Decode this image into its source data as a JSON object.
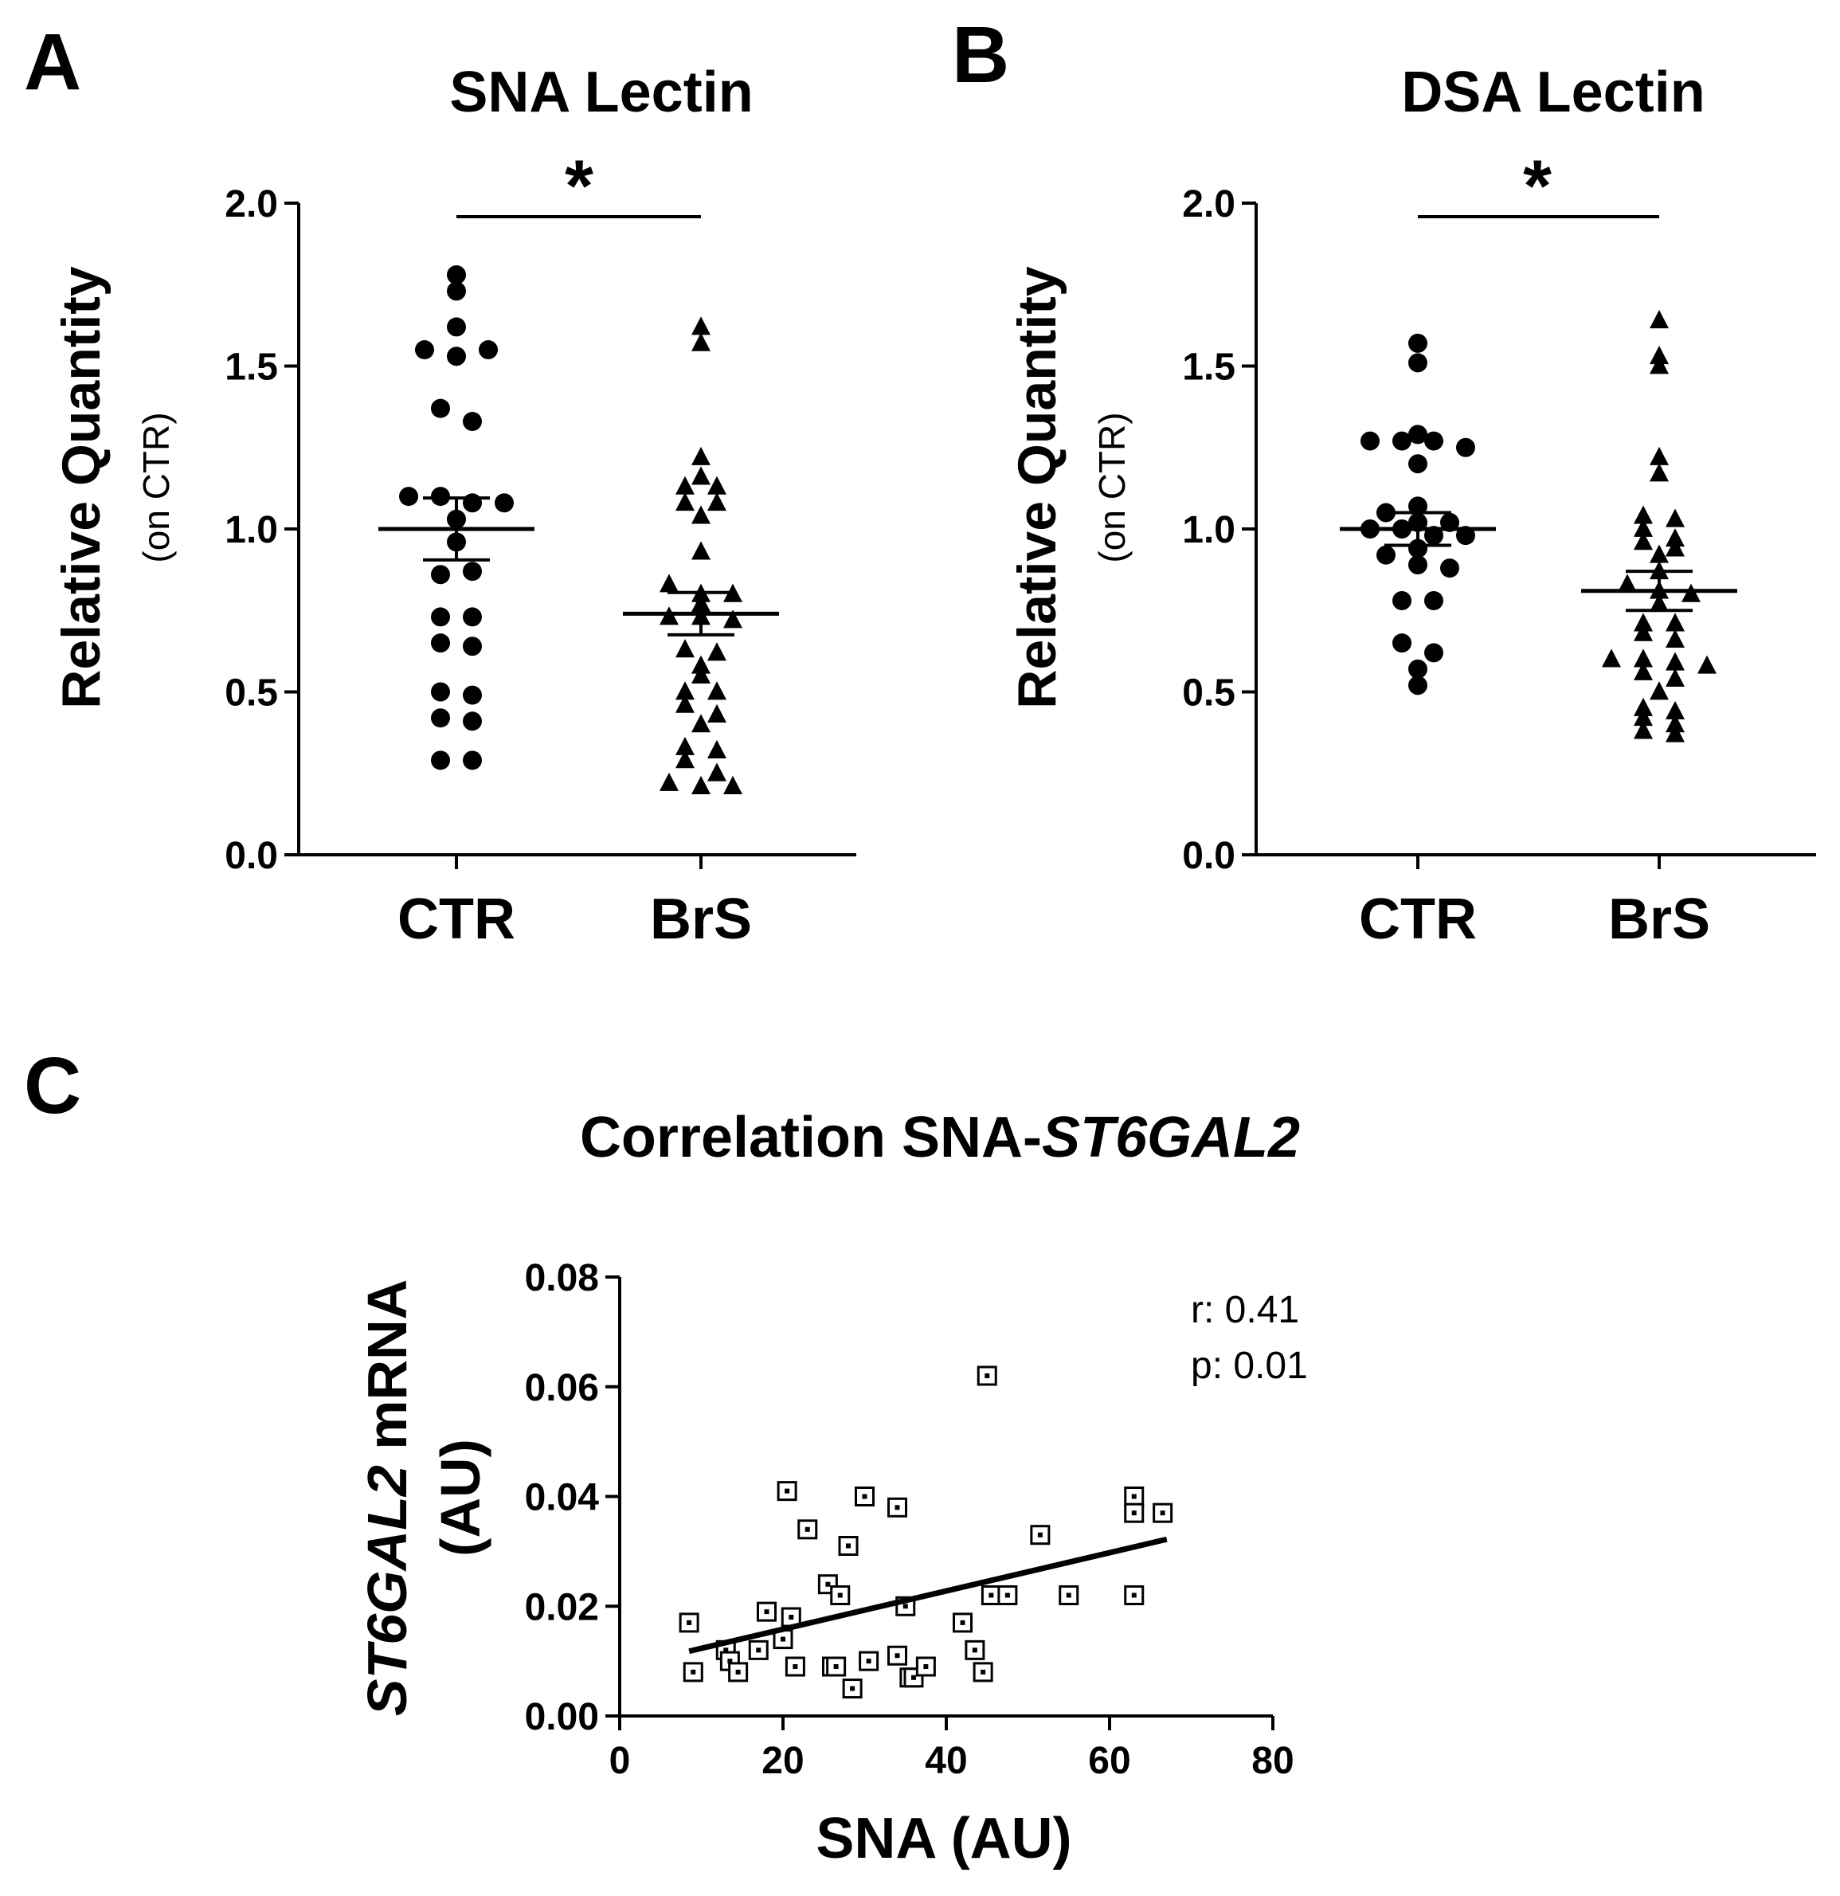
{
  "chart_data": [
    {
      "panel": "A",
      "type": "scatter",
      "title": "SNA Lectin",
      "ylabel": "Relative Quantity",
      "ylabel_sub": "(on CTR)",
      "ylim": [
        0,
        2.0
      ],
      "yticks": [
        "0.0",
        "0.5",
        "1.0",
        "1.5",
        "2.0"
      ],
      "categories": [
        "CTR",
        "BrS"
      ],
      "significance": "*",
      "series": [
        {
          "name": "CTR",
          "marker": "circle",
          "mean": 1.0,
          "sem_low": 0.905,
          "sem_high": 1.095,
          "values": [
            1.78,
            1.73,
            1.62,
            1.55,
            1.53,
            1.55,
            1.37,
            1.33,
            1.1,
            1.1,
            1.08,
            1.08,
            1.03,
            0.96,
            0.86,
            0.87,
            0.73,
            0.73,
            0.65,
            0.64,
            0.5,
            0.49,
            0.42,
            0.41,
            0.29,
            0.29
          ]
        },
        {
          "name": "BrS",
          "marker": "triangle",
          "mean": 0.74,
          "sem_low": 0.675,
          "sem_high": 0.805,
          "values": [
            1.62,
            1.57,
            1.22,
            1.16,
            1.13,
            1.13,
            1.08,
            1.08,
            1.04,
            0.93,
            0.83,
            0.8,
            0.8,
            0.77,
            0.73,
            0.73,
            0.72,
            0.63,
            0.62,
            0.58,
            0.55,
            0.5,
            0.5,
            0.46,
            0.43,
            0.4,
            0.33,
            0.32,
            0.29,
            0.25,
            0.22,
            0.21,
            0.21
          ]
        }
      ]
    },
    {
      "panel": "B",
      "type": "scatter",
      "title": "DSA Lectin",
      "ylabel": "Relative Quantity",
      "ylabel_sub": "(on CTR)",
      "ylim": [
        0,
        2.0
      ],
      "yticks": [
        "0.0",
        "0.5",
        "1.0",
        "1.5",
        "2.0"
      ],
      "categories": [
        "CTR",
        "BrS"
      ],
      "significance": "*",
      "series": [
        {
          "name": "CTR",
          "marker": "circle",
          "mean": 1.0,
          "sem_low": 0.95,
          "sem_high": 1.05,
          "values": [
            1.57,
            1.51,
            1.29,
            1.27,
            1.27,
            1.27,
            1.25,
            1.2,
            1.07,
            1.05,
            1.02,
            1.02,
            1.0,
            1.0,
            0.98,
            0.98,
            0.94,
            0.92,
            0.89,
            0.88,
            0.78,
            0.78,
            0.65,
            0.62,
            0.57,
            0.52
          ]
        },
        {
          "name": "BrS",
          "marker": "triangle",
          "mean": 0.81,
          "sem_low": 0.75,
          "sem_high": 0.87,
          "values": [
            1.64,
            1.53,
            1.5,
            1.22,
            1.17,
            1.04,
            1.03,
            1.0,
            0.97,
            0.96,
            0.94,
            0.92,
            0.87,
            0.83,
            0.81,
            0.8,
            0.77,
            0.71,
            0.71,
            0.68,
            0.66,
            0.6,
            0.6,
            0.59,
            0.58,
            0.56,
            0.54,
            0.5,
            0.45,
            0.44,
            0.42,
            0.4,
            0.38,
            0.37
          ]
        }
      ]
    },
    {
      "panel": "C",
      "type": "scatter",
      "title_plain": "Correlation SNA-",
      "title_italic": "ST6GAL2",
      "xlabel": "SNA (AU)",
      "ylabel_italic": "ST6GAL2",
      "ylabel_rest": " mRNA",
      "ylabel_line2": "(AU)",
      "xlim": [
        0,
        80
      ],
      "ylim": [
        0,
        0.08
      ],
      "xticks": [
        "0",
        "20",
        "40",
        "60",
        "80"
      ],
      "yticks": [
        "0.00",
        "0.02",
        "0.04",
        "0.06",
        "0.08"
      ],
      "annotation": [
        "r: 0.41",
        "p: 0.01"
      ],
      "marker": "square",
      "points": [
        {
          "x": 8.5,
          "y": 0.017
        },
        {
          "x": 9.0,
          "y": 0.008
        },
        {
          "x": 13.0,
          "y": 0.012
        },
        {
          "x": 13.5,
          "y": 0.01
        },
        {
          "x": 14.5,
          "y": 0.008
        },
        {
          "x": 17.0,
          "y": 0.012
        },
        {
          "x": 18.0,
          "y": 0.019
        },
        {
          "x": 20.0,
          "y": 0.014
        },
        {
          "x": 20.5,
          "y": 0.041
        },
        {
          "x": 21.0,
          "y": 0.018
        },
        {
          "x": 21.5,
          "y": 0.009
        },
        {
          "x": 23.0,
          "y": 0.034
        },
        {
          "x": 25.5,
          "y": 0.024
        },
        {
          "x": 26.0,
          "y": 0.009
        },
        {
          "x": 26.5,
          "y": 0.009
        },
        {
          "x": 27.0,
          "y": 0.022
        },
        {
          "x": 28.0,
          "y": 0.031
        },
        {
          "x": 28.5,
          "y": 0.005
        },
        {
          "x": 30.0,
          "y": 0.04
        },
        {
          "x": 30.5,
          "y": 0.01
        },
        {
          "x": 34.0,
          "y": 0.038
        },
        {
          "x": 34.0,
          "y": 0.011
        },
        {
          "x": 35.0,
          "y": 0.02
        },
        {
          "x": 35.5,
          "y": 0.007
        },
        {
          "x": 36.0,
          "y": 0.007
        },
        {
          "x": 37.5,
          "y": 0.009
        },
        {
          "x": 42.0,
          "y": 0.017
        },
        {
          "x": 43.5,
          "y": 0.012
        },
        {
          "x": 44.5,
          "y": 0.008
        },
        {
          "x": 45.0,
          "y": 0.062
        },
        {
          "x": 45.5,
          "y": 0.022
        },
        {
          "x": 47.5,
          "y": 0.022
        },
        {
          "x": 51.5,
          "y": 0.033
        },
        {
          "x": 55.0,
          "y": 0.022
        },
        {
          "x": 63.0,
          "y": 0.04
        },
        {
          "x": 63.0,
          "y": 0.037
        },
        {
          "x": 63.0,
          "y": 0.022
        },
        {
          "x": 66.5,
          "y": 0.037
        }
      ],
      "fit": {
        "x1": 8.5,
        "y1": 0.0118,
        "x2": 67.0,
        "y2": 0.0322
      }
    }
  ],
  "panel_letters": [
    "A",
    "B",
    "C"
  ]
}
